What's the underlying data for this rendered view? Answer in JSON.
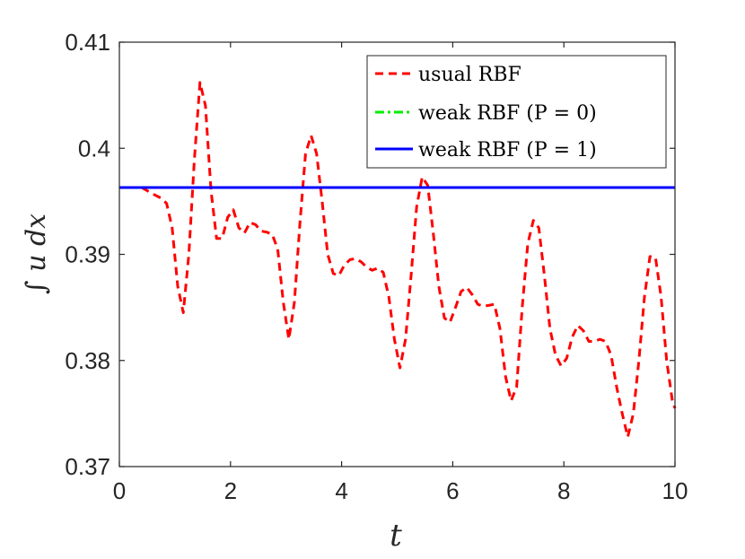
{
  "chart_data": {
    "type": "line",
    "xlabel": "t",
    "ylabel": "∫ u dx",
    "xlim": [
      0,
      10
    ],
    "ylim": [
      0.37,
      0.41
    ],
    "xticks": [
      0,
      2,
      4,
      6,
      8,
      10
    ],
    "xtick_labels": [
      "0",
      "2",
      "4",
      "6",
      "8",
      "10"
    ],
    "yticks": [
      0.37,
      0.38,
      0.39,
      0.4,
      0.41
    ],
    "ytick_labels": [
      "0.37",
      "0.38",
      "0.39",
      "0.4",
      "0.41"
    ],
    "grid": false,
    "legend_position": "top-right",
    "series": [
      {
        "name": "usual RBF",
        "color": "#ff0000",
        "style": "dashed",
        "x": [
          0.4,
          0.6,
          0.75,
          0.85,
          0.95,
          1.05,
          1.15,
          1.25,
          1.35,
          1.45,
          1.55,
          1.65,
          1.75,
          1.85,
          1.95,
          2.05,
          2.15,
          2.25,
          2.35,
          2.45,
          2.55,
          2.65,
          2.75,
          2.85,
          2.95,
          3.05,
          3.15,
          3.25,
          3.35,
          3.45,
          3.55,
          3.65,
          3.75,
          3.85,
          3.95,
          4.05,
          4.15,
          4.25,
          4.35,
          4.45,
          4.55,
          4.65,
          4.75,
          4.85,
          4.95,
          5.05,
          5.15,
          5.25,
          5.35,
          5.45,
          5.55,
          5.65,
          5.75,
          5.85,
          5.95,
          6.05,
          6.15,
          6.25,
          6.35,
          6.45,
          6.55,
          6.65,
          6.75,
          6.85,
          6.95,
          7.05,
          7.15,
          7.25,
          7.35,
          7.45,
          7.55,
          7.65,
          7.75,
          7.85,
          7.95,
          8.05,
          8.15,
          8.25,
          8.35,
          8.45,
          8.55,
          8.65,
          8.75,
          8.85,
          8.95,
          9.05,
          9.15,
          9.25,
          9.35,
          9.45,
          9.55,
          9.65,
          9.75,
          9.85,
          9.95,
          10.0
        ],
        "y": [
          0.3963,
          0.3957,
          0.3953,
          0.3948,
          0.3925,
          0.387,
          0.3845,
          0.39,
          0.399,
          0.4062,
          0.404,
          0.396,
          0.3915,
          0.3915,
          0.3935,
          0.3942,
          0.3925,
          0.392,
          0.393,
          0.3928,
          0.3922,
          0.3921,
          0.3919,
          0.3905,
          0.3855,
          0.382,
          0.3855,
          0.393,
          0.3995,
          0.4012,
          0.3995,
          0.395,
          0.39,
          0.3882,
          0.388,
          0.389,
          0.3895,
          0.3896,
          0.3893,
          0.3888,
          0.3885,
          0.3887,
          0.3883,
          0.386,
          0.382,
          0.3793,
          0.382,
          0.388,
          0.3945,
          0.3973,
          0.3965,
          0.392,
          0.387,
          0.384,
          0.3836,
          0.385,
          0.3865,
          0.3869,
          0.3862,
          0.3853,
          0.3851,
          0.3852,
          0.3853,
          0.383,
          0.3785,
          0.3762,
          0.3775,
          0.385,
          0.391,
          0.3932,
          0.3925,
          0.388,
          0.383,
          0.3805,
          0.3795,
          0.3802,
          0.3822,
          0.3833,
          0.3828,
          0.3818,
          0.3818,
          0.382,
          0.3818,
          0.3805,
          0.3775,
          0.375,
          0.3728,
          0.375,
          0.38,
          0.386,
          0.3898,
          0.3897,
          0.386,
          0.38,
          0.3763,
          0.3755
        ]
      },
      {
        "name": "weak RBF (P = 0)",
        "color": "#00ee00",
        "style": "dashdot",
        "x": [
          0,
          10
        ],
        "y": [
          0.3963,
          0.3963
        ]
      },
      {
        "name": "weak RBF (P = 1)",
        "color": "#0000ff",
        "style": "solid",
        "x": [
          0,
          10
        ],
        "y": [
          0.3963,
          0.3963
        ]
      }
    ]
  }
}
